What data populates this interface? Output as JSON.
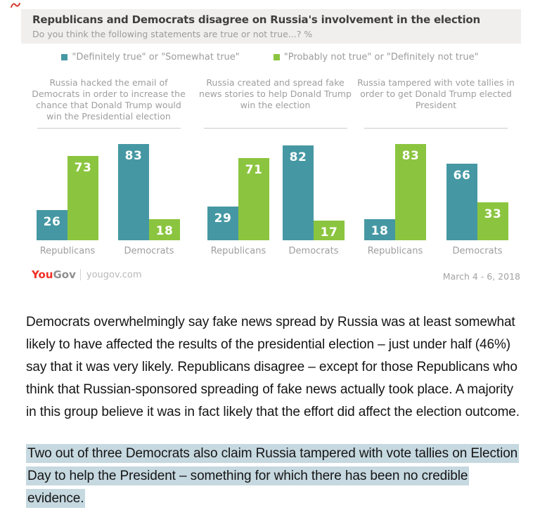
{
  "chart": {
    "title": "Republicans and Democrats disagree on Russia's involvement in the election",
    "subtitle": "Do you think the following statements are true or not true...? %",
    "legend": [
      {
        "label": "\"Definitely true\" or \"Somewhat true\"",
        "color": "#4598a3"
      },
      {
        "label": "\"Probably not true\" or \"Definitely not true\"",
        "color": "#8bc53f"
      }
    ],
    "footer": {
      "brand_you": "You",
      "brand_gov": "Gov",
      "site": "yougov.com",
      "date_range": "March 4 - 6, 2018"
    }
  },
  "chart_data": {
    "type": "bar",
    "unit": "%",
    "ylim": [
      0,
      100
    ],
    "series_names": [
      "\"Definitely true\" or \"Somewhat true\"",
      "\"Probably not true\" or \"Definitely not true\""
    ],
    "series_colors": [
      "#4598a3",
      "#8bc53f"
    ],
    "panels": [
      {
        "question": "Russia hacked the email of Democrats in order to increase the chance that Donald Trump would win the Presidential election",
        "categories": [
          "Republicans",
          "Democrats"
        ],
        "series": [
          {
            "name": "definitely-or-somewhat-true",
            "values": [
              26,
              83
            ]
          },
          {
            "name": "probably-or-definitely-not-true",
            "values": [
              73,
              18
            ]
          }
        ]
      },
      {
        "question": "Russia created and spread fake news stories to help Donald Trump win the election",
        "categories": [
          "Republicans",
          "Democrats"
        ],
        "series": [
          {
            "name": "definitely-or-somewhat-true",
            "values": [
              29,
              82
            ]
          },
          {
            "name": "probably-or-definitely-not-true",
            "values": [
              71,
              17
            ]
          }
        ]
      },
      {
        "question": "Russia tampered with vote tallies in order to get Donald Trump elected President",
        "categories": [
          "Republicans",
          "Democrats"
        ],
        "series": [
          {
            "name": "definitely-or-somewhat-true",
            "values": [
              18,
              66
            ]
          },
          {
            "name": "probably-or-definitely-not-true",
            "values": [
              83,
              33
            ]
          }
        ]
      }
    ]
  },
  "article": {
    "paragraph1": "Democrats overwhelmingly say fake news spread by Russia was at least somewhat likely to have affected the results of the presidential election – just under half (46%) say that it was very likely. Republicans disagree – except for those Republicans who think that Russian-sponsored spreading of fake news actually took place. A majority in this group believe it was in fact likely that the effort did affect the election outcome.",
    "paragraph2": "Two out of three Democrats also claim Russia tampered with vote tallies on Election Day to help the President – something for which there has been no credible evidence."
  },
  "colors": {
    "teal": "#4598a3",
    "green": "#8bc53f",
    "highlight": "#c6d8e0",
    "header_bg": "#f0efed",
    "brand_red": "#ee3124"
  }
}
